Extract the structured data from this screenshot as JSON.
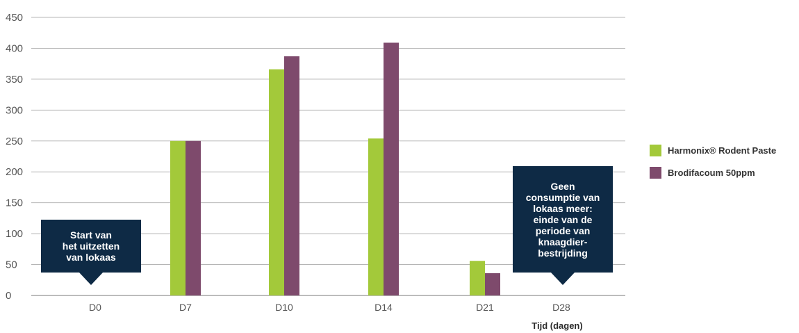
{
  "chart_data": {
    "type": "bar",
    "categories": [
      "D0",
      "D7",
      "D10",
      "D14",
      "D21",
      "D28"
    ],
    "series": [
      {
        "name": "Harmonix® Rodent Paste",
        "color": "#a3c93a",
        "values": [
          0,
          250,
          366,
          254,
          56,
          0
        ]
      },
      {
        "name": "Brodifacoum 50ppm",
        "color": "#7e4a6c",
        "values": [
          0,
          250,
          387,
          409,
          36,
          0
        ]
      }
    ],
    "title": "",
    "xlabel": "Tijd (dagen)",
    "ylabel": "",
    "ylim": [
      0,
      450
    ],
    "yticks": [
      0,
      50,
      100,
      150,
      200,
      250,
      300,
      350,
      400,
      450
    ],
    "grid": true,
    "legend_position": "right",
    "annotations": [
      {
        "category": "D0",
        "lines": [
          "Start van",
          "het uitzetten",
          "van lokaas"
        ]
      },
      {
        "category": "D28",
        "lines": [
          "Geen",
          "consumptie van",
          "lokaas meer:",
          "einde van de",
          "periode van",
          "knaagdier-",
          "bestrijding"
        ]
      }
    ]
  }
}
